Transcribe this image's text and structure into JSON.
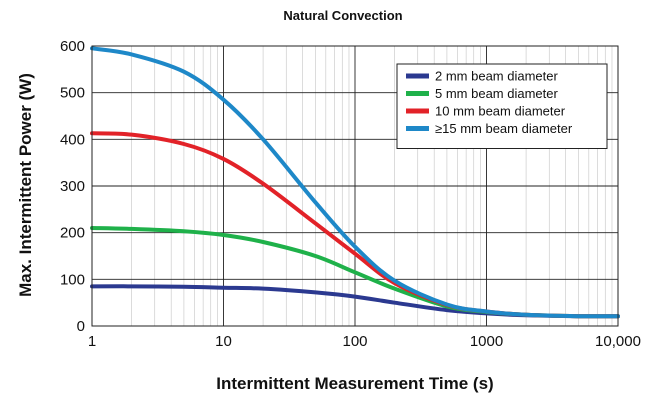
{
  "chart_data": {
    "type": "line",
    "title": "Natural Convection",
    "xlabel": "Intermittent Measurement Time (s)",
    "ylabel": "Max. Intermittent Power (W)",
    "x_scale": "log",
    "xlim": [
      1,
      10000
    ],
    "ylim": [
      0,
      600
    ],
    "x_ticks": [
      1,
      10,
      100,
      1000,
      10000
    ],
    "x_tick_labels": [
      "1",
      "10",
      "100",
      "1000",
      "10,000"
    ],
    "y_ticks": [
      0,
      100,
      200,
      300,
      400,
      500,
      600
    ],
    "y_tick_labels": [
      "0",
      "100",
      "200",
      "300",
      "400",
      "500",
      "600"
    ],
    "grid": true,
    "legend_position": "top-right",
    "series": [
      {
        "name": "2 mm beam diameter",
        "color": "#2b3990",
        "x": [
          1,
          2,
          5,
          10,
          20,
          50,
          100,
          200,
          500,
          1000,
          2000,
          5000,
          10000
        ],
        "y": [
          85,
          85,
          84,
          82,
          80,
          72,
          63,
          50,
          34,
          27,
          23,
          21,
          21
        ]
      },
      {
        "name": "5 mm beam diameter",
        "color": "#1fb14a",
        "x": [
          1,
          2,
          5,
          10,
          20,
          50,
          100,
          200,
          500,
          1000,
          2000,
          5000,
          10000
        ],
        "y": [
          210,
          208,
          203,
          195,
          180,
          150,
          115,
          80,
          42,
          30,
          24,
          21,
          21
        ]
      },
      {
        "name": "10 mm beam diameter",
        "color": "#e22228",
        "x": [
          1,
          2,
          5,
          10,
          20,
          50,
          100,
          200,
          500,
          1000,
          2000,
          5000,
          10000
        ],
        "y": [
          413,
          410,
          390,
          358,
          305,
          220,
          155,
          92,
          45,
          31,
          24,
          21,
          21
        ]
      },
      {
        "name": "≥15 mm beam diameter",
        "color": "#1e88c8",
        "x": [
          1,
          2,
          5,
          10,
          20,
          50,
          100,
          200,
          500,
          1000,
          2000,
          5000,
          10000
        ],
        "y": [
          595,
          582,
          545,
          485,
          400,
          265,
          170,
          97,
          46,
          31,
          24,
          21,
          21
        ]
      }
    ]
  }
}
